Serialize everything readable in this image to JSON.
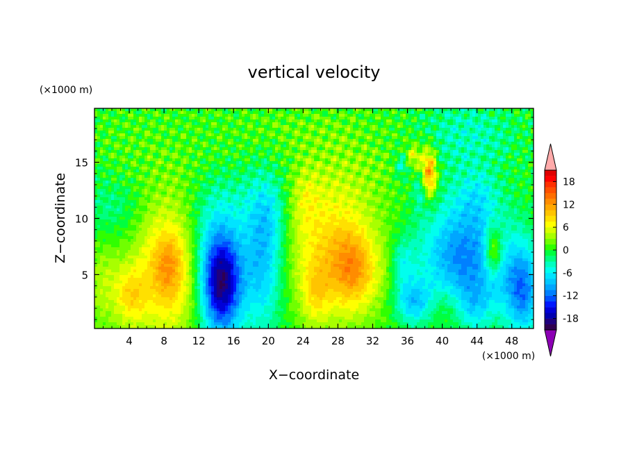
{
  "chart_data": {
    "type": "heatmap",
    "title": "vertical velocity",
    "xlabel": "X−coordinate",
    "ylabel": "Z−coordinate",
    "x_unit": "(×1000 m)",
    "z_unit": "(×1000 m)",
    "xlim": [
      0,
      50.5
    ],
    "zlim": [
      0.2,
      19.8
    ],
    "x_ticks": [
      4,
      8,
      12,
      16,
      20,
      24,
      28,
      32,
      36,
      40,
      44,
      48
    ],
    "z_ticks": [
      5,
      10,
      15
    ],
    "colorbar": {
      "levels": [
        -21,
        -19.5,
        -18,
        -16.5,
        -15,
        -13.5,
        -12,
        -10.5,
        -9,
        -7.5,
        -6,
        -4.5,
        -3,
        -1.5,
        0,
        1.5,
        3,
        4.5,
        6,
        7.5,
        9,
        10.5,
        12,
        13.5,
        15,
        16.5,
        18,
        19.5,
        21
      ],
      "tick_labels": [
        -18,
        -12,
        -6,
        0,
        6,
        12,
        18
      ],
      "colors": [
        "#300050",
        "#20007e",
        "#0000b0",
        "#0000d8",
        "#0018ff",
        "#0050ff",
        "#0080ff",
        "#00a6ff",
        "#00c8ff",
        "#00e4ff",
        "#00ffee",
        "#00ffc0",
        "#00ff80",
        "#00ff40",
        "#30ff00",
        "#70ff00",
        "#a8ff00",
        "#d8ff00",
        "#ffff00",
        "#ffe000",
        "#ffc400",
        "#ffa800",
        "#ff8c00",
        "#ff6e00",
        "#ff5000",
        "#ff3000",
        "#ff0000",
        "#e00000"
      ],
      "under_color": "#8c00b4",
      "over_color": "#ffaaaa"
    },
    "background_value": 0,
    "features": [
      {
        "x": 8.4,
        "z": 5.2,
        "sx": 2.7,
        "sz": 4.0,
        "amp": 10
      },
      {
        "x": 8.6,
        "z": 6.0,
        "sx": 1.1,
        "sz": 1.8,
        "amp": 3
      },
      {
        "x": 4.2,
        "z": 3.0,
        "sx": 1.2,
        "sz": 1.9,
        "amp": 6
      },
      {
        "x": 1.2,
        "z": 4.0,
        "sx": 1.6,
        "sz": 2.8,
        "amp": 4
      },
      {
        "x": 14.6,
        "z": 3.8,
        "sx": 1.6,
        "sz": 3.2,
        "amp": -16
      },
      {
        "x": 14.0,
        "z": 7.0,
        "sx": 2.2,
        "sz": 3.5,
        "amp": -6
      },
      {
        "x": 19.3,
        "z": 5.8,
        "sx": 1.7,
        "sz": 4.2,
        "amp": -8
      },
      {
        "x": 20.0,
        "z": 10.5,
        "sx": 1.5,
        "sz": 2.6,
        "amp": -4
      },
      {
        "x": 27.0,
        "z": 7.0,
        "sx": 3.5,
        "sz": 4.4,
        "amp": 8
      },
      {
        "x": 29.8,
        "z": 5.5,
        "sx": 1.7,
        "sz": 2.4,
        "amp": 7
      },
      {
        "x": 25.5,
        "z": 3.2,
        "sx": 1.2,
        "sz": 2.0,
        "amp": 4
      },
      {
        "x": 24.2,
        "z": 12.0,
        "sx": 1.2,
        "sz": 2.0,
        "amp": 3
      },
      {
        "x": 33.5,
        "z": 5.0,
        "sx": 2.6,
        "sz": 3.0,
        "amp": 2
      },
      {
        "x": 36.7,
        "z": 2.6,
        "sx": 1.6,
        "sz": 1.4,
        "amp": -8
      },
      {
        "x": 35.4,
        "z": 6.0,
        "sx": 1.0,
        "sz": 1.6,
        "amp": -5
      },
      {
        "x": 42.5,
        "z": 6.6,
        "sx": 3.6,
        "sz": 3.4,
        "amp": -11
      },
      {
        "x": 40.0,
        "z": 2.0,
        "sx": 1.5,
        "sz": 1.5,
        "amp": 3
      },
      {
        "x": 43.8,
        "z": 2.2,
        "sx": 1.3,
        "sz": 1.6,
        "amp": -4
      },
      {
        "x": 45.9,
        "z": 7.0,
        "sx": 0.7,
        "sz": 1.6,
        "amp": 9
      },
      {
        "x": 46.2,
        "z": 4.2,
        "sx": 0.9,
        "sz": 1.6,
        "amp": -2
      },
      {
        "x": 49.2,
        "z": 3.6,
        "sx": 1.4,
        "sz": 2.8,
        "amp": -11
      },
      {
        "x": 38.5,
        "z": 14.0,
        "sx": 0.6,
        "sz": 1.5,
        "amp": 13
      },
      {
        "x": 36.7,
        "z": 15.5,
        "sx": 0.7,
        "sz": 0.8,
        "amp": 6
      },
      {
        "x": 35.4,
        "z": 14.8,
        "sx": 0.6,
        "sz": 0.8,
        "amp": -5
      },
      {
        "x": 37.5,
        "z": 12.5,
        "sx": 0.6,
        "sz": 1.2,
        "amp": -4
      },
      {
        "x": 44.0,
        "z": 12.0,
        "sx": 1.8,
        "sz": 1.8,
        "amp": -4
      },
      {
        "x": 44.5,
        "z": 17.5,
        "sx": 3.0,
        "sz": 2.0,
        "amp": -3
      },
      {
        "x": 40.5,
        "z": 17.5,
        "sx": 2.5,
        "sz": 2.5,
        "amp": -2
      },
      {
        "x": 30.0,
        "z": 14.0,
        "sx": 4.0,
        "sz": 3.0,
        "amp": 2
      },
      {
        "x": 10.0,
        "z": 13.0,
        "sx": 4.0,
        "sz": 2.5,
        "amp": 1.5
      },
      {
        "x": 22.0,
        "z": 18.0,
        "sx": 6.0,
        "sz": 1.8,
        "amp": 1.5
      },
      {
        "x": 5.0,
        "z": 17.0,
        "sx": 4.0,
        "sz": 2.5,
        "amp": 1.0
      },
      {
        "x": 15.0,
        "z": 12.0,
        "sx": 3.5,
        "sz": 2.0,
        "amp": -2
      },
      {
        "x": 2.0,
        "z": 11.0,
        "sx": 2.5,
        "sz": 2.0,
        "amp": -2.5
      }
    ]
  }
}
